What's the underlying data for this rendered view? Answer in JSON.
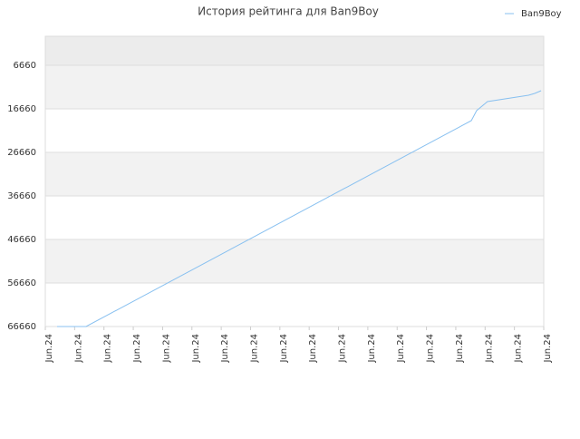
{
  "chart_data": {
    "type": "line",
    "title": "История рейтинга для Ban9Boy",
    "x": [
      0.4,
      1.39,
      14.53,
      14.71,
      15.08,
      16.48,
      16.69,
      16.91
    ],
    "series": [
      {
        "name": "Ban9Boy",
        "color": "#88c0f0",
        "values": [
          66660,
          66660,
          19368,
          17077,
          14993,
          13535,
          13118,
          12493
        ]
      }
    ],
    "xlim": [
      0,
      17
    ],
    "xticks": [
      {
        "value": 0,
        "label": "Jun.24"
      },
      {
        "value": 1,
        "label": "Jun.24"
      },
      {
        "value": 2,
        "label": "Jun.24"
      },
      {
        "value": 3,
        "label": "Jun.24"
      },
      {
        "value": 4,
        "label": "Jun.24"
      },
      {
        "value": 5,
        "label": "Jun.24"
      },
      {
        "value": 6,
        "label": "Jun.24"
      },
      {
        "value": 7,
        "label": "Jun.24"
      },
      {
        "value": 8,
        "label": "Jun.24"
      },
      {
        "value": 9,
        "label": "Jun.24"
      },
      {
        "value": 10,
        "label": "Jun.24"
      },
      {
        "value": 11,
        "label": "Jun.24"
      },
      {
        "value": 12,
        "label": "Jun.24"
      },
      {
        "value": 13,
        "label": "Jun.24"
      },
      {
        "value": 14,
        "label": "Jun.24"
      },
      {
        "value": 15,
        "label": "Jun.24"
      },
      {
        "value": 16,
        "label": "Jun.24"
      },
      {
        "value": 17,
        "label": "Jun.24"
      }
    ],
    "ylim": [
      66660,
      -7
    ],
    "yticks": [
      6660,
      16660,
      26660,
      36660,
      46660,
      56660,
      66660
    ],
    "grid": true,
    "legend": "top-right"
  }
}
